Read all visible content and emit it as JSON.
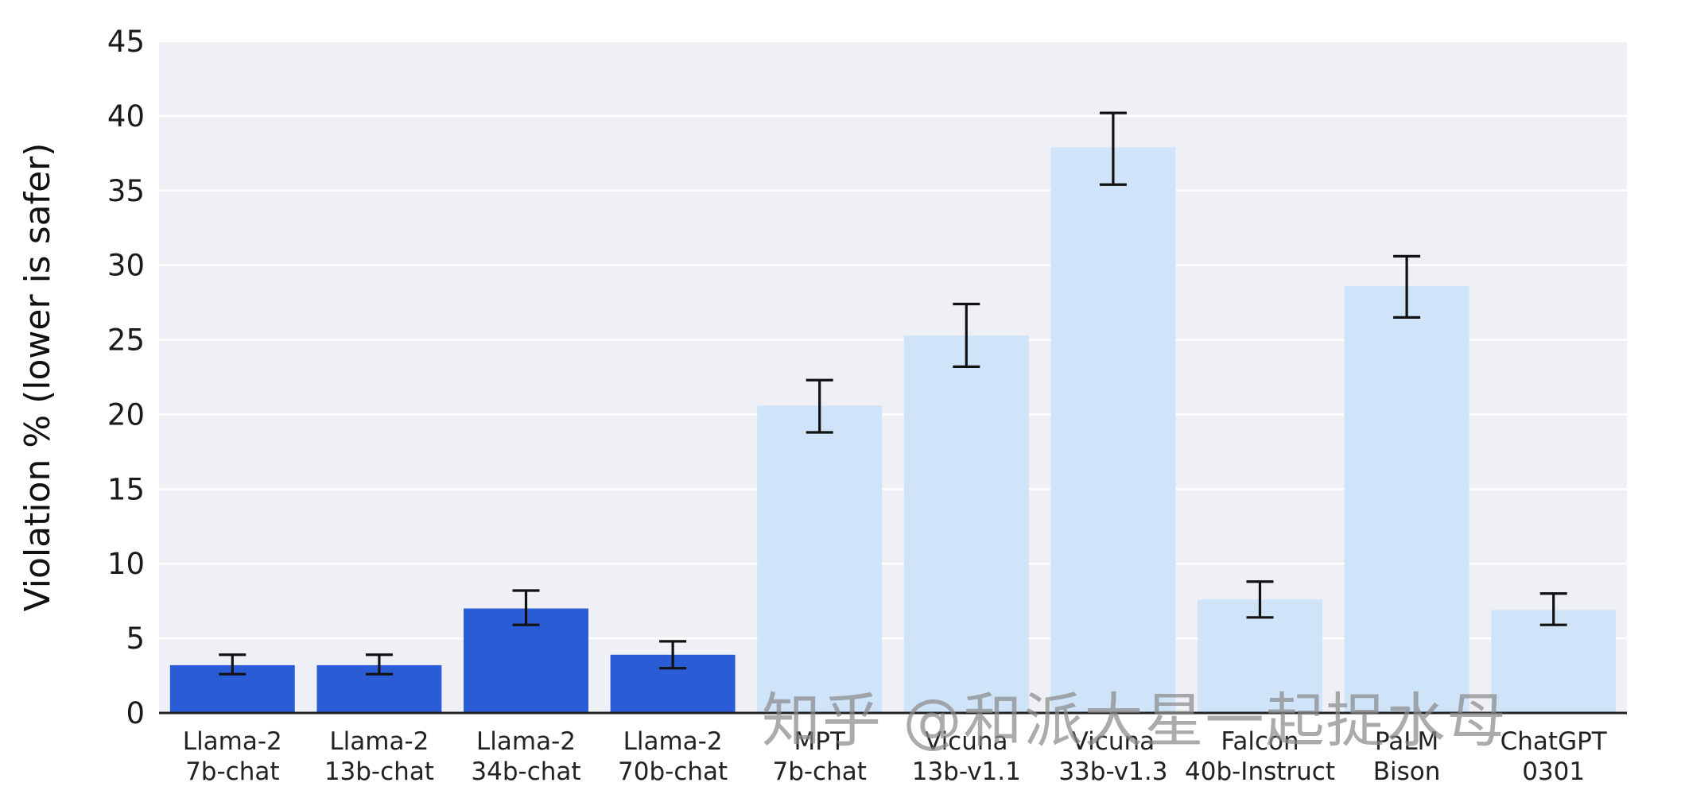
{
  "chart_data": {
    "type": "bar",
    "title": "",
    "xlabel": "",
    "ylabel": "Violation % (lower is safer)",
    "ylim": [
      0,
      45
    ],
    "yticks": [
      0,
      5,
      10,
      15,
      20,
      25,
      30,
      35,
      40,
      45
    ],
    "grid": true,
    "legend": null,
    "categories": [
      [
        "Llama-2",
        "7b-chat"
      ],
      [
        "Llama-2",
        "13b-chat"
      ],
      [
        "Llama-2",
        "34b-chat"
      ],
      [
        "Llama-2",
        "70b-chat"
      ],
      [
        "MPT",
        "7b-chat"
      ],
      [
        "Vicuna",
        "13b-v1.1"
      ],
      [
        "Vicuna",
        "33b-v1.3"
      ],
      [
        "Falcon",
        "40b-Instruct"
      ],
      [
        "PaLM",
        "Bison"
      ],
      [
        "ChatGPT",
        "0301"
      ]
    ],
    "values": [
      3.2,
      3.2,
      7.0,
      3.9,
      20.6,
      25.3,
      37.9,
      7.6,
      28.6,
      6.9
    ],
    "error_low": [
      2.6,
      2.6,
      5.9,
      3.0,
      18.8,
      23.2,
      35.4,
      6.4,
      26.5,
      5.9
    ],
    "error_high": [
      3.9,
      3.9,
      8.2,
      4.8,
      22.3,
      27.4,
      40.2,
      8.8,
      30.6,
      8.0
    ],
    "bar_colors": [
      "dark",
      "dark",
      "dark",
      "dark",
      "light",
      "light",
      "light",
      "light",
      "light",
      "light"
    ],
    "colors": {
      "dark": "#2a5cd6",
      "light": "#cfe3f9"
    },
    "plot_bg": "#eef0f5",
    "grid_color": "#ffffff",
    "axis_text_color": "#1a1a1a",
    "error_bar_color": "#111111"
  },
  "watermark": {
    "text": "知乎 @和派大星一起捉水母",
    "color": "#8a8a8a"
  }
}
